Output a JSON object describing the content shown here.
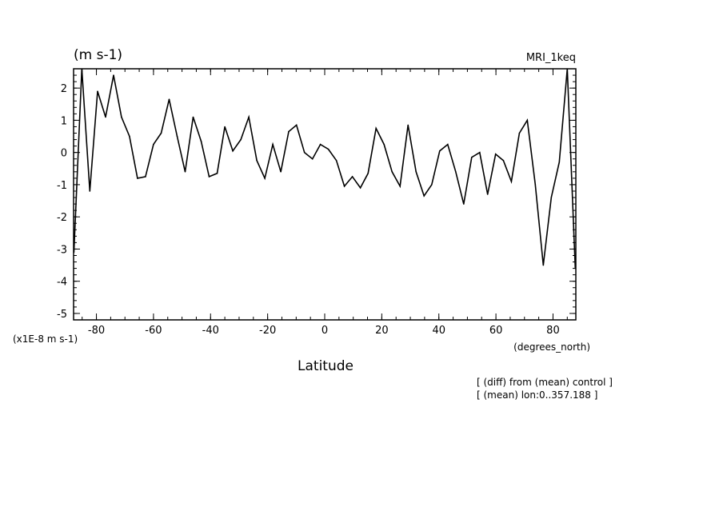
{
  "chart_data": {
    "type": "line",
    "unit_label": "(m s-1)",
    "title": "MRI_1keq",
    "scale_label": "(x1E-8 m s-1)",
    "xlabel": "Latitude",
    "x_unit_label": "(degrees_north)",
    "notes": [
      "[ (diff) from (mean) control ]",
      "[ (mean) lon:0..357.188 ]"
    ],
    "xlim": [
      -88,
      88
    ],
    "ylim": [
      -5.2,
      2.6
    ],
    "x_ticks": [
      -80,
      -60,
      -40,
      -20,
      0,
      20,
      40,
      60,
      80
    ],
    "x_tick_labels": [
      "-80",
      "-60",
      "-40",
      "-20",
      "0",
      "20",
      "40",
      "60",
      "80"
    ],
    "y_ticks": [
      2,
      1,
      0,
      -1,
      -2,
      -3,
      -4,
      -5
    ],
    "y_tick_labels": [
      "2",
      "1",
      "0",
      "-1",
      "-2",
      "-3",
      "-4",
      "-5"
    ],
    "grid": false,
    "series": [
      {
        "color": "#000000",
        "x": [
          -87.9,
          -85.1,
          -82.3,
          -79.6,
          -76.8,
          -74.0,
          -71.2,
          -68.4,
          -65.6,
          -62.8,
          -60.0,
          -57.3,
          -54.5,
          -51.7,
          -48.9,
          -46.1,
          -43.3,
          -40.5,
          -37.7,
          -35.0,
          -32.2,
          -29.4,
          -26.6,
          -23.8,
          -21.0,
          -18.2,
          -15.4,
          -12.6,
          -9.9,
          -7.1,
          -4.3,
          -1.5,
          1.3,
          4.1,
          6.9,
          9.7,
          12.5,
          15.2,
          18.0,
          20.8,
          23.6,
          26.4,
          29.2,
          32.0,
          34.8,
          37.5,
          40.3,
          43.1,
          45.9,
          48.7,
          51.5,
          54.3,
          57.1,
          59.9,
          62.6,
          65.4,
          68.2,
          71.0,
          73.8,
          76.6,
          79.4,
          82.2,
          85.0,
          87.8
        ],
        "y": [
          -3.1,
          2.6,
          -1.2,
          1.9,
          1.1,
          2.4,
          1.1,
          0.5,
          -0.8,
          -0.75,
          0.25,
          0.6,
          1.65,
          0.5,
          -0.6,
          1.1,
          0.35,
          -0.75,
          -0.65,
          0.8,
          0.05,
          0.4,
          1.1,
          -0.25,
          -0.8,
          0.25,
          -0.6,
          0.65,
          0.85,
          0.0,
          -0.2,
          0.25,
          0.1,
          -0.25,
          -1.05,
          -0.75,
          -1.1,
          -0.65,
          0.75,
          0.25,
          -0.6,
          -1.05,
          0.85,
          -0.6,
          -1.35,
          -1.0,
          0.05,
          0.25,
          -0.6,
          -1.6,
          -0.15,
          0.0,
          -1.3,
          -0.05,
          -0.25,
          -0.9,
          0.6,
          1.0,
          -1.0,
          -3.5,
          -1.4,
          -0.3,
          2.6,
          -3.6
        ]
      }
    ]
  }
}
